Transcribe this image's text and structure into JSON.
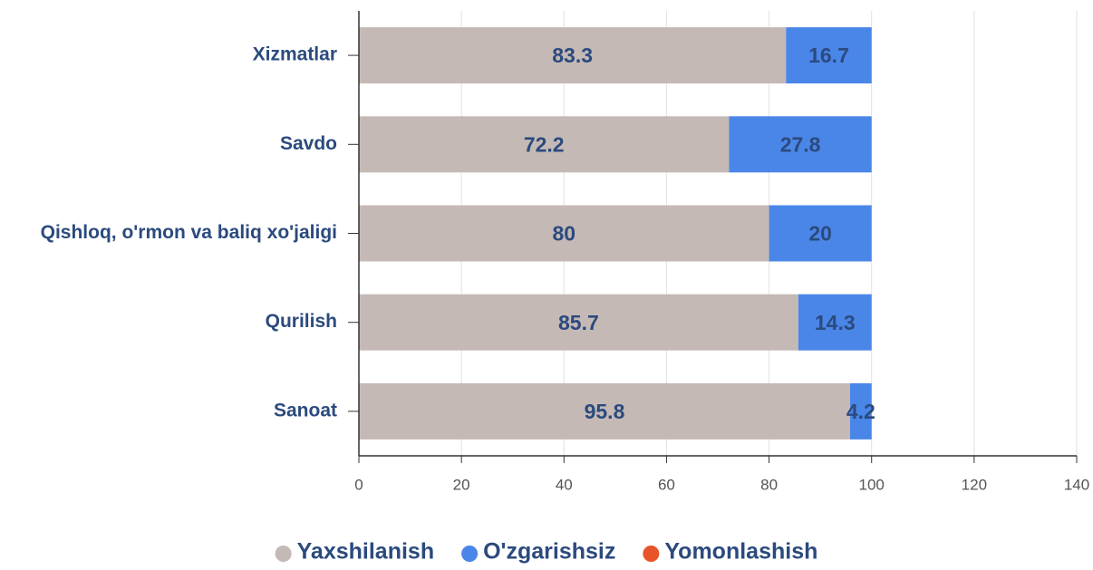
{
  "chart_data": {
    "type": "stacked-barh",
    "categories": [
      "Xizmatlar",
      "Savdo",
      "Qishloq, o'rmon va baliq xo'jaligi",
      "Qurilish",
      "Sanoat"
    ],
    "series": [
      {
        "name": "Yaxshilanish",
        "color": "#c5b9b6",
        "values": [
          83.3,
          72.2,
          80,
          85.7,
          95.8
        ]
      },
      {
        "name": "O'zgarishsiz",
        "color": "#4a86e8",
        "values": [
          16.7,
          27.8,
          20,
          14.3,
          4.2
        ]
      },
      {
        "name": "Yomonlashish",
        "color": "#e8532a",
        "values": [
          0,
          0,
          0,
          0,
          0
        ]
      }
    ],
    "xlim": [
      0,
      140
    ],
    "xticks": [
      0,
      20,
      40,
      60,
      80,
      100,
      120,
      140
    ],
    "grid": true,
    "legend": "bottom"
  }
}
